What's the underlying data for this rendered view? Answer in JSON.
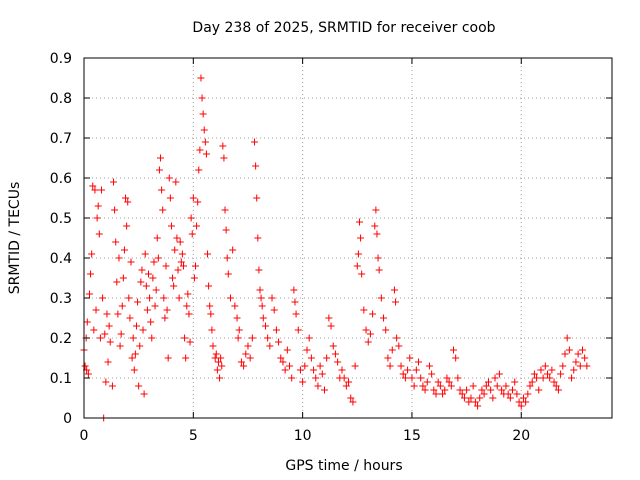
{
  "chart_data": {
    "type": "scatter",
    "title": "Day 238 of 2025, SRMTID for receiver coob",
    "xlabel": "GPS time / hours",
    "ylabel": "SRMTID / TECUs",
    "xlim": [
      0,
      24.15
    ],
    "ylim": [
      0,
      0.9
    ],
    "xticks": [
      0,
      5,
      10,
      15,
      20
    ],
    "xtick_labels": [
      "0",
      "5",
      "10",
      "15",
      "20"
    ],
    "yticks": [
      0,
      0.1,
      0.2,
      0.3,
      0.4,
      0.5,
      0.6,
      0.7,
      0.8,
      0.9
    ],
    "ytick_labels": [
      "0",
      "0.1",
      "0.2",
      "0.3",
      "0.4",
      "0.5",
      "0.6",
      "0.7",
      "0.8",
      "0.9"
    ],
    "grid": true,
    "marker": "+",
    "color": "#ff0000",
    "series": [
      {
        "name": "SRMTID",
        "points": [
          [
            0.0,
            0.17
          ],
          [
            0.05,
            0.13
          ],
          [
            0.1,
            0.2
          ],
          [
            0.12,
            0.12
          ],
          [
            0.15,
            0.24
          ],
          [
            0.2,
            0.11
          ],
          [
            0.25,
            0.31
          ],
          [
            0.3,
            0.36
          ],
          [
            0.35,
            0.41
          ],
          [
            0.4,
            0.58
          ],
          [
            0.45,
            0.22
          ],
          [
            0.5,
            0.57
          ],
          [
            0.55,
            0.27
          ],
          [
            0.6,
            0.5
          ],
          [
            0.65,
            0.53
          ],
          [
            0.7,
            0.46
          ],
          [
            0.75,
            0.2
          ],
          [
            0.8,
            0.57
          ],
          [
            0.85,
            0.3
          ],
          [
            0.9,
            0.0
          ],
          [
            0.95,
            0.21
          ],
          [
            1.0,
            0.09
          ],
          [
            1.05,
            0.26
          ],
          [
            1.1,
            0.14
          ],
          [
            1.15,
            0.23
          ],
          [
            1.2,
            0.19
          ],
          [
            1.3,
            0.08
          ],
          [
            1.35,
            0.59
          ],
          [
            1.4,
            0.52
          ],
          [
            1.45,
            0.44
          ],
          [
            1.5,
            0.34
          ],
          [
            1.55,
            0.26
          ],
          [
            1.6,
            0.4
          ],
          [
            1.65,
            0.18
          ],
          [
            1.7,
            0.21
          ],
          [
            1.75,
            0.28
          ],
          [
            1.8,
            0.35
          ],
          [
            1.85,
            0.42
          ],
          [
            1.9,
            0.55
          ],
          [
            1.95,
            0.48
          ],
          [
            2.0,
            0.54
          ],
          [
            2.05,
            0.3
          ],
          [
            2.1,
            0.25
          ],
          [
            2.15,
            0.39
          ],
          [
            2.2,
            0.15
          ],
          [
            2.25,
            0.2
          ],
          [
            2.3,
            0.12
          ],
          [
            2.35,
            0.16
          ],
          [
            2.4,
            0.23
          ],
          [
            2.45,
            0.29
          ],
          [
            2.5,
            0.08
          ],
          [
            2.55,
            0.18
          ],
          [
            2.6,
            0.34
          ],
          [
            2.65,
            0.37
          ],
          [
            2.7,
            0.22
          ],
          [
            2.75,
            0.06
          ],
          [
            2.8,
            0.41
          ],
          [
            2.85,
            0.33
          ],
          [
            2.9,
            0.27
          ],
          [
            2.95,
            0.36
          ],
          [
            3.0,
            0.3
          ],
          [
            3.05,
            0.24
          ],
          [
            3.1,
            0.2
          ],
          [
            3.15,
            0.35
          ],
          [
            3.2,
            0.39
          ],
          [
            3.25,
            0.28
          ],
          [
            3.3,
            0.32
          ],
          [
            3.35,
            0.45
          ],
          [
            3.4,
            0.4
          ],
          [
            3.45,
            0.62
          ],
          [
            3.5,
            0.65
          ],
          [
            3.55,
            0.57
          ],
          [
            3.6,
            0.52
          ],
          [
            3.65,
            0.3
          ],
          [
            3.7,
            0.25
          ],
          [
            3.75,
            0.38
          ],
          [
            3.8,
            0.27
          ],
          [
            3.85,
            0.15
          ],
          [
            3.9,
            0.6
          ],
          [
            3.95,
            0.55
          ],
          [
            4.0,
            0.48
          ],
          [
            4.05,
            0.35
          ],
          [
            4.1,
            0.33
          ],
          [
            4.15,
            0.42
          ],
          [
            4.2,
            0.59
          ],
          [
            4.25,
            0.45
          ],
          [
            4.3,
            0.37
          ],
          [
            4.35,
            0.3
          ],
          [
            4.4,
            0.44
          ],
          [
            4.45,
            0.39
          ],
          [
            4.5,
            0.41
          ],
          [
            4.55,
            0.38
          ],
          [
            4.6,
            0.2
          ],
          [
            4.65,
            0.15
          ],
          [
            4.7,
            0.28
          ],
          [
            4.75,
            0.31
          ],
          [
            4.8,
            0.26
          ],
          [
            4.85,
            0.19
          ],
          [
            4.9,
            0.5
          ],
          [
            4.95,
            0.46
          ],
          [
            5.0,
            0.55
          ],
          [
            5.05,
            0.35
          ],
          [
            5.1,
            0.38
          ],
          [
            5.15,
            0.48
          ],
          [
            5.2,
            0.54
          ],
          [
            5.25,
            0.62
          ],
          [
            5.3,
            0.67
          ],
          [
            5.35,
            0.85
          ],
          [
            5.4,
            0.8
          ],
          [
            5.45,
            0.76
          ],
          [
            5.5,
            0.72
          ],
          [
            5.55,
            0.69
          ],
          [
            5.6,
            0.66
          ],
          [
            5.65,
            0.41
          ],
          [
            5.7,
            0.33
          ],
          [
            5.75,
            0.28
          ],
          [
            5.8,
            0.26
          ],
          [
            5.85,
            0.22
          ],
          [
            5.9,
            0.18
          ],
          [
            6.0,
            0.15
          ],
          [
            6.05,
            0.16
          ],
          [
            6.1,
            0.12
          ],
          [
            6.15,
            0.14
          ],
          [
            6.2,
            0.1
          ],
          [
            6.25,
            0.15
          ],
          [
            6.3,
            0.13
          ],
          [
            6.35,
            0.68
          ],
          [
            6.4,
            0.65
          ],
          [
            6.45,
            0.52
          ],
          [
            6.5,
            0.47
          ],
          [
            6.55,
            0.4
          ],
          [
            6.6,
            0.36
          ],
          [
            6.7,
            0.3
          ],
          [
            6.8,
            0.42
          ],
          [
            6.9,
            0.28
          ],
          [
            7.0,
            0.25
          ],
          [
            7.05,
            0.2
          ],
          [
            7.1,
            0.22
          ],
          [
            7.2,
            0.14
          ],
          [
            7.3,
            0.13
          ],
          [
            7.4,
            0.16
          ],
          [
            7.5,
            0.18
          ],
          [
            7.6,
            0.15
          ],
          [
            7.7,
            0.2
          ],
          [
            7.8,
            0.69
          ],
          [
            7.85,
            0.63
          ],
          [
            7.9,
            0.55
          ],
          [
            7.95,
            0.45
          ],
          [
            8.0,
            0.37
          ],
          [
            8.05,
            0.32
          ],
          [
            8.1,
            0.3
          ],
          [
            8.15,
            0.28
          ],
          [
            8.2,
            0.25
          ],
          [
            8.3,
            0.23
          ],
          [
            8.4,
            0.2
          ],
          [
            8.5,
            0.18
          ],
          [
            8.6,
            0.3
          ],
          [
            8.7,
            0.27
          ],
          [
            8.8,
            0.22
          ],
          [
            8.9,
            0.19
          ],
          [
            9.0,
            0.15
          ],
          [
            9.1,
            0.14
          ],
          [
            9.2,
            0.12
          ],
          [
            9.3,
            0.17
          ],
          [
            9.4,
            0.13
          ],
          [
            9.5,
            0.1
          ],
          [
            9.6,
            0.32
          ],
          [
            9.65,
            0.29
          ],
          [
            9.7,
            0.26
          ],
          [
            9.8,
            0.22
          ],
          [
            9.9,
            0.12
          ],
          [
            10.0,
            0.09
          ],
          [
            10.1,
            0.13
          ],
          [
            10.2,
            0.17
          ],
          [
            10.3,
            0.2
          ],
          [
            10.4,
            0.15
          ],
          [
            10.5,
            0.12
          ],
          [
            10.6,
            0.1
          ],
          [
            10.7,
            0.08
          ],
          [
            10.8,
            0.13
          ],
          [
            10.9,
            0.11
          ],
          [
            11.0,
            0.07
          ],
          [
            11.1,
            0.15
          ],
          [
            11.2,
            0.25
          ],
          [
            11.3,
            0.23
          ],
          [
            11.4,
            0.18
          ],
          [
            11.5,
            0.16
          ],
          [
            11.6,
            0.14
          ],
          [
            11.7,
            0.1
          ],
          [
            11.8,
            0.12
          ],
          [
            11.9,
            0.1
          ],
          [
            12.0,
            0.08
          ],
          [
            12.1,
            0.09
          ],
          [
            12.2,
            0.05
          ],
          [
            12.3,
            0.04
          ],
          [
            12.4,
            0.13
          ],
          [
            12.5,
            0.38
          ],
          [
            12.55,
            0.41
          ],
          [
            12.6,
            0.49
          ],
          [
            12.65,
            0.45
          ],
          [
            12.7,
            0.36
          ],
          [
            12.8,
            0.27
          ],
          [
            12.9,
            0.22
          ],
          [
            13.0,
            0.19
          ],
          [
            13.1,
            0.21
          ],
          [
            13.2,
            0.26
          ],
          [
            13.3,
            0.48
          ],
          [
            13.35,
            0.52
          ],
          [
            13.4,
            0.46
          ],
          [
            13.45,
            0.4
          ],
          [
            13.5,
            0.37
          ],
          [
            13.6,
            0.3
          ],
          [
            13.7,
            0.25
          ],
          [
            13.8,
            0.22
          ],
          [
            13.9,
            0.15
          ],
          [
            14.0,
            0.13
          ],
          [
            14.1,
            0.17
          ],
          [
            14.2,
            0.32
          ],
          [
            14.25,
            0.29
          ],
          [
            14.3,
            0.2
          ],
          [
            14.4,
            0.18
          ],
          [
            14.5,
            0.13
          ],
          [
            14.6,
            0.11
          ],
          [
            14.7,
            0.1
          ],
          [
            14.8,
            0.12
          ],
          [
            14.9,
            0.15
          ],
          [
            15.0,
            0.1
          ],
          [
            15.1,
            0.08
          ],
          [
            15.2,
            0.12
          ],
          [
            15.3,
            0.14
          ],
          [
            15.4,
            0.1
          ],
          [
            15.5,
            0.08
          ],
          [
            15.6,
            0.07
          ],
          [
            15.7,
            0.09
          ],
          [
            15.8,
            0.13
          ],
          [
            15.9,
            0.11
          ],
          [
            16.0,
            0.07
          ],
          [
            16.1,
            0.06
          ],
          [
            16.2,
            0.09
          ],
          [
            16.3,
            0.08
          ],
          [
            16.4,
            0.06
          ],
          [
            16.5,
            0.07
          ],
          [
            16.6,
            0.1
          ],
          [
            16.7,
            0.09
          ],
          [
            16.8,
            0.08
          ],
          [
            16.9,
            0.17
          ],
          [
            17.0,
            0.15
          ],
          [
            17.1,
            0.1
          ],
          [
            17.2,
            0.07
          ],
          [
            17.3,
            0.06
          ],
          [
            17.4,
            0.05
          ],
          [
            17.5,
            0.07
          ],
          [
            17.6,
            0.04
          ],
          [
            17.7,
            0.05
          ],
          [
            17.8,
            0.08
          ],
          [
            17.9,
            0.04
          ],
          [
            18.0,
            0.03
          ],
          [
            18.1,
            0.05
          ],
          [
            18.2,
            0.07
          ],
          [
            18.3,
            0.06
          ],
          [
            18.4,
            0.08
          ],
          [
            18.5,
            0.09
          ],
          [
            18.6,
            0.07
          ],
          [
            18.7,
            0.05
          ],
          [
            18.8,
            0.1
          ],
          [
            18.9,
            0.08
          ],
          [
            19.0,
            0.11
          ],
          [
            19.1,
            0.07
          ],
          [
            19.2,
            0.06
          ],
          [
            19.3,
            0.08
          ],
          [
            19.4,
            0.06
          ],
          [
            19.5,
            0.05
          ],
          [
            19.6,
            0.07
          ],
          [
            19.7,
            0.09
          ],
          [
            19.8,
            0.06
          ],
          [
            19.9,
            0.04
          ],
          [
            20.0,
            0.03
          ],
          [
            20.1,
            0.05
          ],
          [
            20.2,
            0.04
          ],
          [
            20.3,
            0.06
          ],
          [
            20.4,
            0.08
          ],
          [
            20.5,
            0.09
          ],
          [
            20.6,
            0.11
          ],
          [
            20.7,
            0.1
          ],
          [
            20.8,
            0.07
          ],
          [
            20.9,
            0.12
          ],
          [
            21.0,
            0.1
          ],
          [
            21.1,
            0.13
          ],
          [
            21.2,
            0.11
          ],
          [
            21.3,
            0.1
          ],
          [
            21.4,
            0.12
          ],
          [
            21.5,
            0.09
          ],
          [
            21.6,
            0.08
          ],
          [
            21.7,
            0.07
          ],
          [
            21.8,
            0.11
          ],
          [
            21.9,
            0.13
          ],
          [
            22.0,
            0.16
          ],
          [
            22.1,
            0.2
          ],
          [
            22.2,
            0.17
          ],
          [
            22.3,
            0.1
          ],
          [
            22.4,
            0.12
          ],
          [
            22.5,
            0.14
          ],
          [
            22.6,
            0.16
          ],
          [
            22.7,
            0.13
          ],
          [
            22.8,
            0.17
          ],
          [
            22.9,
            0.15
          ],
          [
            23.0,
            0.13
          ]
        ]
      }
    ]
  }
}
